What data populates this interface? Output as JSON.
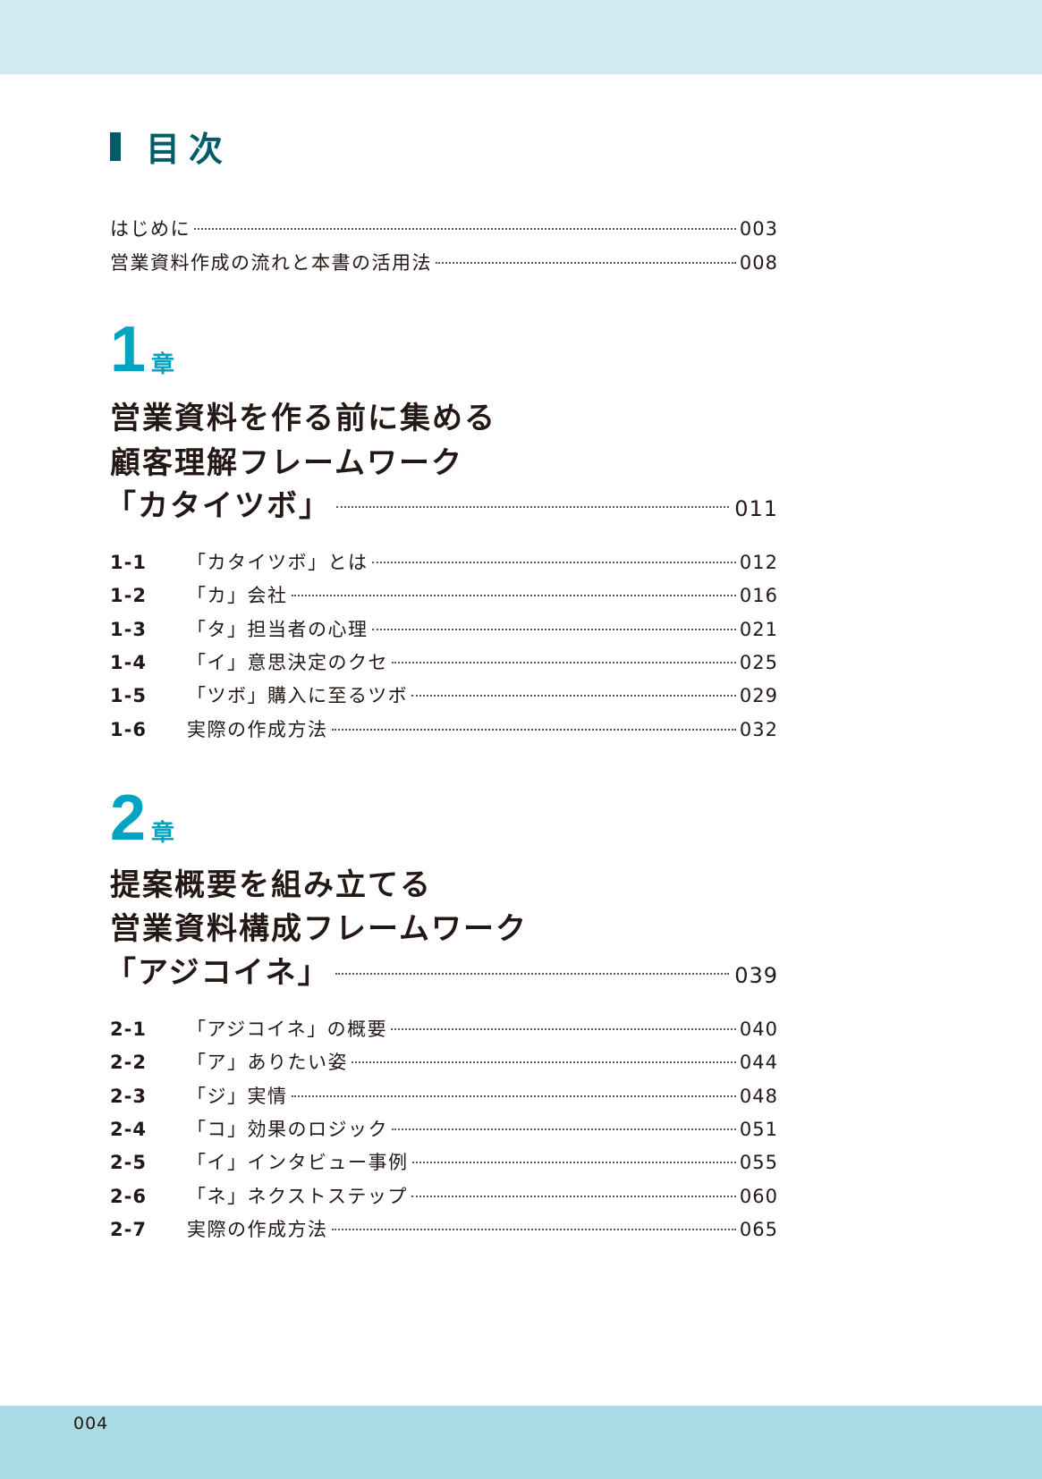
{
  "title": "目次",
  "intro": [
    {
      "label": "はじめに",
      "page": "003"
    },
    {
      "label": "営業資料作成の流れと本書の活用法",
      "page": "008"
    }
  ],
  "chapters": [
    {
      "number": "1",
      "suffix": "章",
      "heading": [
        "営業資料を作る前に集める",
        "顧客理解フレームワーク",
        "「カタイツボ」"
      ],
      "page": "011",
      "sections": [
        {
          "num": "1-1",
          "label": "「カタイツボ」とは",
          "page": "012"
        },
        {
          "num": "1-2",
          "label": "「カ」会社",
          "page": "016"
        },
        {
          "num": "1-3",
          "label": "「タ」担当者の心理",
          "page": "021"
        },
        {
          "num": "1-4",
          "label": "「イ」意思決定のクセ",
          "page": "025"
        },
        {
          "num": "1-5",
          "label": "「ツボ」購入に至るツボ",
          "page": "029"
        },
        {
          "num": "1-6",
          "label": "実際の作成方法",
          "page": "032"
        }
      ]
    },
    {
      "number": "2",
      "suffix": "章",
      "heading": [
        "提案概要を組み立てる",
        "営業資料構成フレームワーク",
        "「アジコイネ」"
      ],
      "page": "039",
      "sections": [
        {
          "num": "2-1",
          "label": "「アジコイネ」の概要",
          "page": "040"
        },
        {
          "num": "2-2",
          "label": "「ア」ありたい姿",
          "page": "044"
        },
        {
          "num": "2-3",
          "label": "「ジ」実情",
          "page": "048"
        },
        {
          "num": "2-4",
          "label": "「コ」効果のロジック",
          "page": "051"
        },
        {
          "num": "2-5",
          "label": "「イ」インタビュー事例",
          "page": "055"
        },
        {
          "num": "2-6",
          "label": "「ネ」ネクストステップ",
          "page": "060"
        },
        {
          "num": "2-7",
          "label": "実際の作成方法",
          "page": "065"
        }
      ]
    }
  ],
  "folio": "004",
  "colors": {
    "title": "#005c69",
    "chapter": "#00a3c0",
    "top_band": "#d2eaef",
    "bottom_band": "#aadbe5"
  }
}
